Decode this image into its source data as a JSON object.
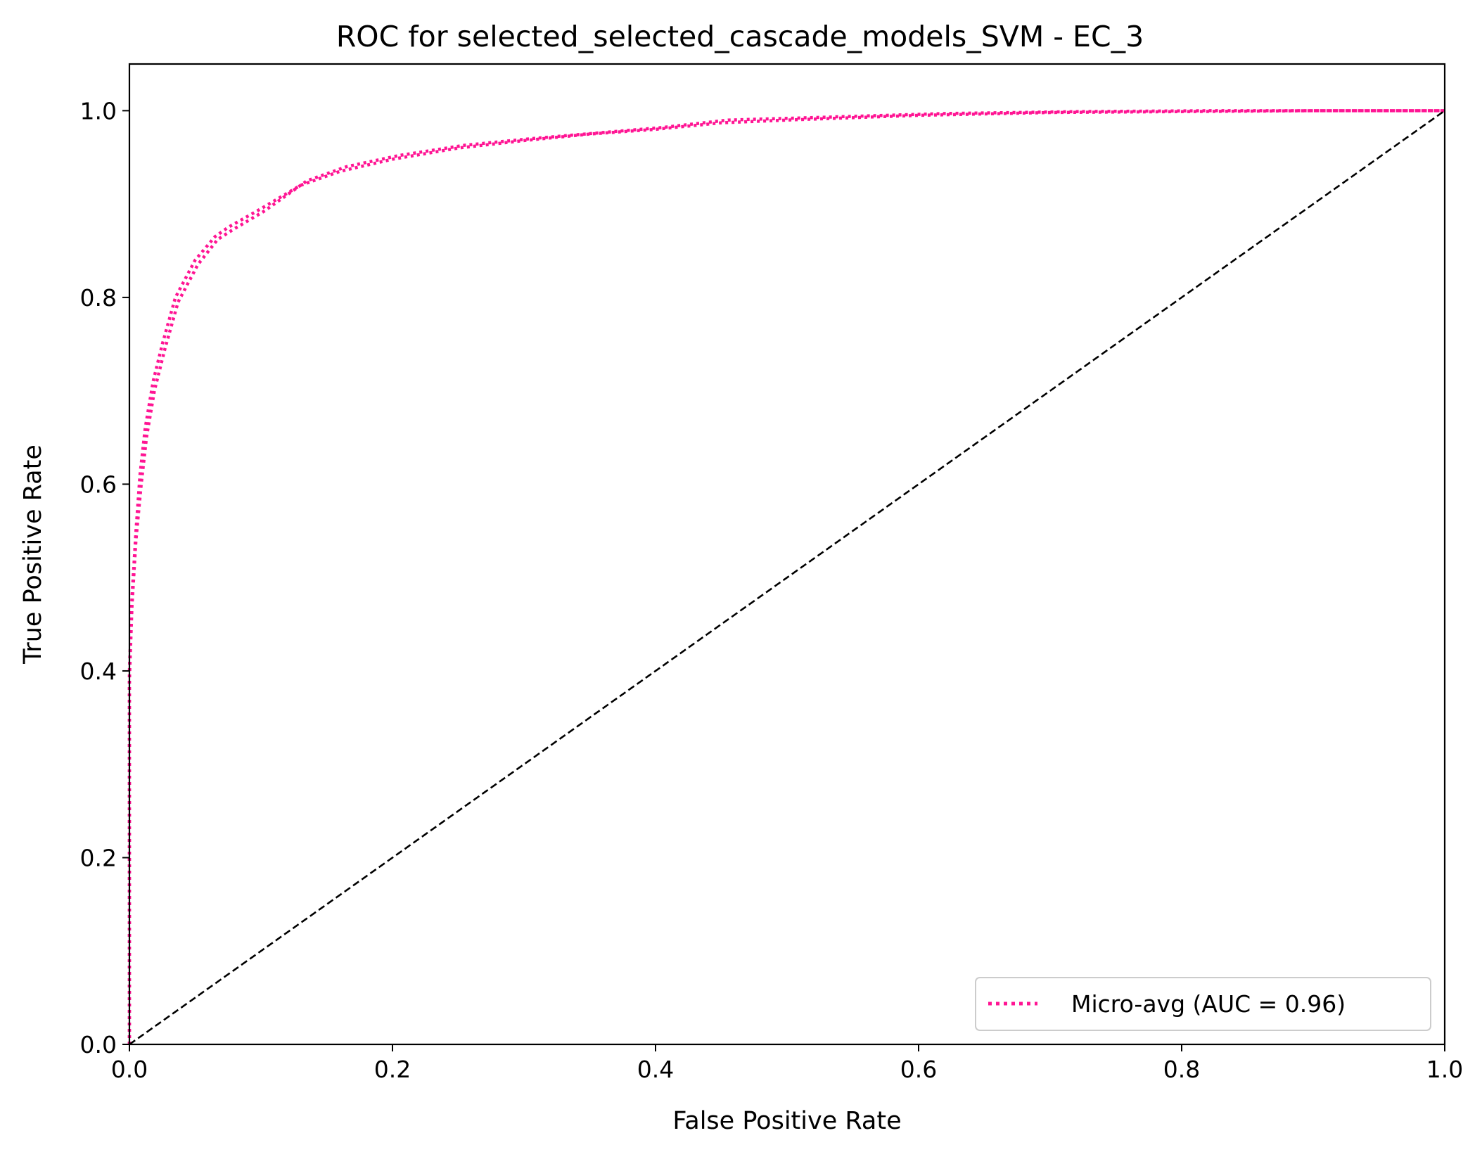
{
  "chart_data": {
    "type": "line",
    "title": "ROC for selected_selected_cascade_models_SVM - EC_3",
    "xlabel": "False Positive Rate",
    "ylabel": "True Positive Rate",
    "xlim": [
      0.0,
      1.0
    ],
    "ylim": [
      0.0,
      1.05
    ],
    "xticks": [
      "0.0",
      "0.2",
      "0.4",
      "0.6",
      "0.8",
      "1.0"
    ],
    "yticks": [
      "0.0",
      "0.2",
      "0.4",
      "0.6",
      "0.8",
      "1.0"
    ],
    "grid": false,
    "legend_position": "lower-right",
    "series": [
      {
        "name": "Micro-avg (AUC = 0.96)",
        "color": "#ff1493",
        "style": "dotted",
        "x": [
          0.0,
          0.0,
          0.002,
          0.005,
          0.008,
          0.012,
          0.018,
          0.025,
          0.035,
          0.05,
          0.065,
          0.075,
          0.1,
          0.13,
          0.16,
          0.2,
          0.25,
          0.3,
          0.35,
          0.4,
          0.45,
          0.5,
          0.6,
          0.7,
          0.8,
          0.9,
          1.0
        ],
        "y": [
          0.0,
          0.4,
          0.48,
          0.55,
          0.61,
          0.66,
          0.71,
          0.75,
          0.8,
          0.84,
          0.865,
          0.875,
          0.895,
          0.92,
          0.935,
          0.948,
          0.96,
          0.968,
          0.975,
          0.98,
          0.987,
          0.99,
          0.995,
          0.998,
          0.999,
          1.0,
          1.0
        ]
      },
      {
        "name": "",
        "color": "#ff1493",
        "style": "dotted",
        "x": [
          0.0,
          0.0,
          0.002,
          0.005,
          0.009,
          0.013,
          0.019,
          0.027,
          0.037,
          0.052,
          0.067,
          0.078,
          0.102,
          0.135,
          0.165,
          0.205,
          0.255,
          0.305,
          0.355,
          0.405,
          0.455,
          0.505,
          0.62,
          0.72,
          0.82,
          0.92,
          1.0
        ],
        "y": [
          0.0,
          0.39,
          0.47,
          0.54,
          0.6,
          0.65,
          0.7,
          0.745,
          0.795,
          0.835,
          0.862,
          0.872,
          0.892,
          0.925,
          0.94,
          0.952,
          0.963,
          0.97,
          0.976,
          0.982,
          0.99,
          0.992,
          0.997,
          0.999,
          1.0,
          1.0,
          1.0
        ]
      },
      {
        "name": "",
        "color": "#000000",
        "style": "dashed",
        "x": [
          0.0,
          1.0
        ],
        "y": [
          0.0,
          1.0
        ]
      }
    ]
  }
}
